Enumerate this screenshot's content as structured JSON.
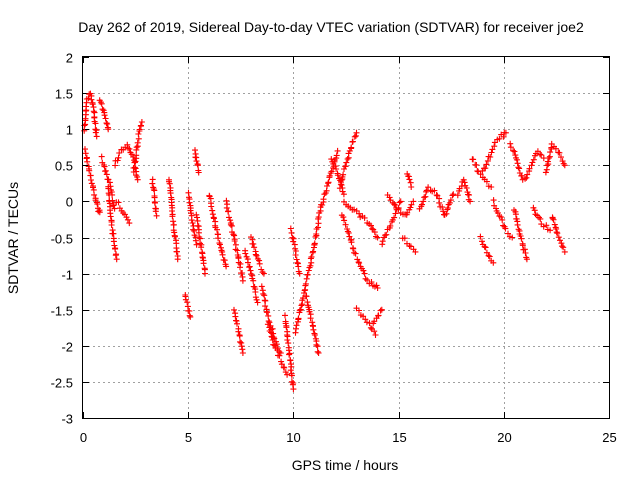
{
  "chart_data": {
    "type": "scatter",
    "title": "Day 262 of 2019, Sidereal Day-to-day VTEC variation (SDTVAR) for receiver joe2",
    "xlabel": "GPS time / hours",
    "ylabel": "SDTVAR / TECUs",
    "xlim": [
      0,
      25
    ],
    "ylim": [
      -3,
      2
    ],
    "x_ticks": [
      0,
      5,
      10,
      15,
      20,
      25
    ],
    "y_ticks": [
      2,
      1.5,
      1,
      0.5,
      0,
      -0.5,
      -1,
      -1.5,
      -2,
      -2.5,
      -3
    ],
    "x_tick_labels": [
      "0",
      "5",
      "10",
      "15",
      "20",
      "25"
    ],
    "y_tick_labels": [
      "2",
      "1.5",
      "1",
      "0.5",
      "0",
      "-0.5",
      "-1",
      "-1.5",
      "-2",
      "-2.5",
      "-3"
    ],
    "grid": true,
    "marker": "+",
    "color": "#ff0000",
    "series": [
      {
        "name": "SDTVAR",
        "tracks": [
          {
            "x": [
              0.05,
              0.2,
              0.35,
              0.5,
              0.65
            ],
            "y": [
              1.0,
              1.4,
              1.5,
              1.3,
              0.9
            ]
          },
          {
            "x": [
              0.1,
              0.25,
              0.4,
              0.55,
              0.7,
              0.8
            ],
            "y": [
              0.7,
              0.5,
              0.3,
              0.1,
              -0.1,
              -0.15
            ]
          },
          {
            "x": [
              0.8,
              0.95,
              1.1,
              1.2
            ],
            "y": [
              1.4,
              1.3,
              1.1,
              1.0
            ]
          },
          {
            "x": [
              0.9,
              1.1,
              1.3,
              1.5
            ],
            "y": [
              0.6,
              0.4,
              0.2,
              -0.1
            ]
          },
          {
            "x": [
              1.2,
              1.35,
              1.5,
              1.6
            ],
            "y": [
              0.2,
              -0.3,
              -0.6,
              -0.8
            ]
          },
          {
            "x": [
              1.5,
              1.8,
              2.1,
              2.4,
              2.6
            ],
            "y": [
              0.5,
              0.7,
              0.8,
              0.6,
              0.3
            ]
          },
          {
            "x": [
              1.6,
              1.9,
              2.2
            ],
            "y": [
              0.0,
              -0.15,
              -0.3
            ]
          },
          {
            "x": [
              2.4,
              2.55,
              2.7,
              2.8
            ],
            "y": [
              0.4,
              0.7,
              1.0,
              1.1
            ]
          },
          {
            "x": [
              3.3,
              3.5
            ],
            "y": [
              0.3,
              -0.2
            ]
          },
          {
            "x": [
              4.1,
              4.3,
              4.5
            ],
            "y": [
              0.3,
              -0.3,
              -0.8
            ]
          },
          {
            "x": [
              4.85,
              5.0,
              5.1
            ],
            "y": [
              -1.3,
              -1.5,
              -1.6
            ]
          },
          {
            "x": [
              5.0,
              5.2,
              5.4
            ],
            "y": [
              0.1,
              -0.3,
              -0.6
            ]
          },
          {
            "x": [
              5.3,
              5.4,
              5.5
            ],
            "y": [
              0.7,
              0.6,
              0.4
            ]
          },
          {
            "x": [
              5.4,
              5.6,
              5.8
            ],
            "y": [
              -0.2,
              -0.6,
              -1.0
            ]
          },
          {
            "x": [
              6.0,
              6.2,
              6.5,
              6.8
            ],
            "y": [
              0.1,
              -0.2,
              -0.6,
              -0.9
            ]
          },
          {
            "x": [
              6.8,
              7.1,
              7.4,
              7.6
            ],
            "y": [
              0.0,
              -0.4,
              -0.8,
              -1.1
            ]
          },
          {
            "x": [
              7.2,
              7.4,
              7.6
            ],
            "y": [
              -1.5,
              -1.8,
              -2.1
            ]
          },
          {
            "x": [
              7.7,
              8.0,
              8.3
            ],
            "y": [
              -0.7,
              -1.0,
              -1.4
            ]
          },
          {
            "x": [
              8.0,
              8.3,
              8.6
            ],
            "y": [
              -0.5,
              -0.8,
              -1.0
            ]
          },
          {
            "x": [
              8.5,
              8.8,
              9.1,
              9.4
            ],
            "y": [
              -1.2,
              -1.6,
              -1.9,
              -2.1
            ]
          },
          {
            "x": [
              8.8,
              9.1,
              9.4,
              9.7
            ],
            "y": [
              -1.7,
              -2.0,
              -2.2,
              -2.4
            ]
          },
          {
            "x": [
              9.6,
              9.8,
              10.0
            ],
            "y": [
              -1.6,
              -2.1,
              -2.6
            ]
          },
          {
            "x": [
              9.9,
              10.1,
              10.3
            ],
            "y": [
              -0.4,
              -0.7,
              -1.0
            ]
          },
          {
            "x": [
              10.1,
              10.4,
              10.7,
              11.0
            ],
            "y": [
              -1.8,
              -1.4,
              -1.0,
              -0.6
            ]
          },
          {
            "x": [
              10.6,
              10.9,
              11.2
            ],
            "y": [
              -1.3,
              -1.7,
              -2.1
            ]
          },
          {
            "x": [
              11.0,
              11.3,
              11.6,
              11.9,
              12.1
            ],
            "y": [
              -0.6,
              -0.1,
              0.2,
              0.5,
              0.7
            ]
          },
          {
            "x": [
              11.8,
              12.1,
              12.4
            ],
            "y": [
              0.6,
              0.4,
              0.1
            ]
          },
          {
            "x": [
              12.2,
              12.5,
              12.8,
              13.0
            ],
            "y": [
              0.2,
              0.5,
              0.8,
              0.95
            ]
          },
          {
            "x": [
              12.3,
              12.6,
              12.9,
              13.2,
              13.5,
              13.8,
              14.0
            ],
            "y": [
              -0.2,
              -0.4,
              -0.7,
              -0.9,
              -1.1,
              -1.15,
              -1.2
            ]
          },
          {
            "x": [
              12.4,
              12.8,
              13.2,
              13.6,
              14.0
            ],
            "y": [
              0.0,
              -0.1,
              -0.2,
              -0.3,
              -0.5
            ]
          },
          {
            "x": [
              13.0,
              13.3,
              13.6,
              13.9
            ],
            "y": [
              -1.5,
              -1.6,
              -1.7,
              -1.85
            ]
          },
          {
            "x": [
              13.8,
              14.0,
              14.2
            ],
            "y": [
              -1.7,
              -1.6,
              -1.5
            ]
          },
          {
            "x": [
              14.2,
              14.5,
              14.8,
              15.1
            ],
            "y": [
              -0.6,
              -0.4,
              -0.2,
              0.0
            ]
          },
          {
            "x": [
              14.5,
              14.9,
              15.3,
              15.7
            ],
            "y": [
              0.1,
              -0.1,
              -0.2,
              0.0
            ]
          },
          {
            "x": [
              15.4,
              15.6
            ],
            "y": [
              0.4,
              0.2
            ]
          },
          {
            "x": [
              15.2,
              15.5,
              15.8
            ],
            "y": [
              -0.5,
              -0.6,
              -0.7
            ]
          },
          {
            "x": [
              16.0,
              16.4,
              16.8,
              17.2,
              17.6
            ],
            "y": [
              -0.1,
              0.2,
              0.1,
              -0.2,
              0.1
            ]
          },
          {
            "x": [
              17.8,
              18.1,
              18.4
            ],
            "y": [
              0.1,
              0.3,
              0.0
            ]
          },
          {
            "x": [
              18.5,
              18.8,
              19.1,
              19.4
            ],
            "y": [
              0.6,
              0.4,
              0.3,
              0.2
            ]
          },
          {
            "x": [
              19.0,
              19.3,
              19.6,
              19.9,
              20.1
            ],
            "y": [
              0.4,
              0.6,
              0.8,
              0.9,
              0.95
            ]
          },
          {
            "x": [
              18.9,
              19.2,
              19.5
            ],
            "y": [
              -0.5,
              -0.7,
              -0.85
            ]
          },
          {
            "x": [
              19.5,
              19.8,
              20.1,
              20.4
            ],
            "y": [
              0.0,
              -0.2,
              -0.4,
              -0.5
            ]
          },
          {
            "x": [
              20.3,
              20.6,
              20.9
            ],
            "y": [
              0.8,
              0.6,
              0.3
            ]
          },
          {
            "x": [
              20.5,
              20.8,
              21.1
            ],
            "y": [
              -0.1,
              -0.5,
              -0.8
            ]
          },
          {
            "x": [
              21.0,
              21.3,
              21.6,
              21.9
            ],
            "y": [
              0.3,
              0.5,
              0.7,
              0.6
            ]
          },
          {
            "x": [
              21.4,
              21.8,
              22.2
            ],
            "y": [
              -0.1,
              -0.3,
              -0.4
            ]
          },
          {
            "x": [
              22.0,
              22.3,
              22.6,
              22.9
            ],
            "y": [
              0.4,
              0.8,
              0.7,
              0.5
            ]
          },
          {
            "x": [
              22.3,
              22.6,
              22.9
            ],
            "y": [
              -0.2,
              -0.5,
              -0.7
            ]
          }
        ]
      }
    ]
  }
}
